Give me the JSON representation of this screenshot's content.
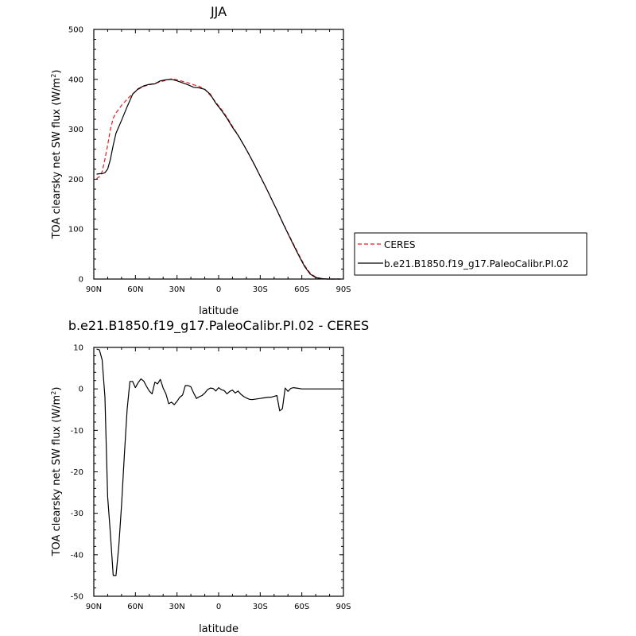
{
  "chart_data": [
    {
      "type": "line",
      "title": "JJA",
      "xlabel": "latitude",
      "ylabel_main": "TOA clearsky net SW flux (W/m",
      "ylabel_sup": "2",
      "ylabel_close": ")",
      "xlim": [
        90,
        -90
      ],
      "ylim": [
        0,
        500
      ],
      "xticks": [
        {
          "value": 90,
          "label": "90N"
        },
        {
          "value": 60,
          "label": "60N"
        },
        {
          "value": 30,
          "label": "30N"
        },
        {
          "value": 0,
          "label": "0"
        },
        {
          "value": -30,
          "label": "30S"
        },
        {
          "value": -60,
          "label": "60S"
        },
        {
          "value": -90,
          "label": "90S"
        }
      ],
      "yticks": [
        0,
        100,
        200,
        300,
        400,
        500
      ],
      "legend_position": "right",
      "series": [
        {
          "name": "CERES",
          "color": "#e41a1c",
          "dash": "dashed",
          "x": [
            88,
            86,
            84,
            82,
            80,
            78,
            76,
            74,
            72,
            70,
            66,
            62,
            58,
            54,
            50,
            46,
            42,
            38,
            34,
            30,
            26,
            22,
            18,
            14,
            10,
            6,
            2,
            -2,
            -6,
            -10,
            -14,
            -18,
            -22,
            -26,
            -30,
            -34,
            -38,
            -42,
            -46,
            -50,
            -54,
            -58,
            -62,
            -66,
            -70,
            -74,
            -78,
            -82,
            -86,
            -88
          ],
          "y": [
            201,
            205,
            215,
            240,
            268,
            300,
            322,
            333,
            340,
            348,
            360,
            371,
            380,
            386,
            389,
            392,
            395,
            398,
            401,
            399,
            396,
            393,
            389,
            386,
            380,
            368,
            354,
            340,
            324,
            306,
            288,
            269,
            249,
            228,
            206,
            184,
            161,
            138,
            115,
            92,
            70,
            48,
            27,
            12,
            4,
            1,
            0,
            0,
            0,
            0
          ]
        },
        {
          "name": "b.e21.B1850.f19_g17.PaleoCalibr.PI.02",
          "color": "#000000",
          "dash": "solid",
          "x": [
            88,
            86,
            84,
            82,
            80,
            78,
            76,
            74,
            72,
            70,
            66,
            62,
            58,
            54,
            50,
            46,
            42,
            38,
            34,
            30,
            26,
            22,
            18,
            14,
            10,
            6,
            2,
            -2,
            -6,
            -10,
            -14,
            -18,
            -22,
            -26,
            -30,
            -34,
            -38,
            -42,
            -46,
            -50,
            -54,
            -58,
            -62,
            -66,
            -70,
            -74,
            -78,
            -82,
            -86,
            -88
          ],
          "y": [
            210,
            211,
            211,
            213,
            220,
            240,
            268,
            292,
            305,
            318,
            345,
            370,
            381,
            387,
            390,
            391,
            397,
            399,
            400,
            397,
            393,
            389,
            384,
            383,
            380,
            370,
            352,
            338,
            322,
            304,
            288,
            269,
            249,
            228,
            206,
            184,
            161,
            138,
            114,
            91,
            68,
            46,
            25,
            10,
            3,
            1,
            0,
            0,
            0,
            0
          ]
        }
      ]
    },
    {
      "type": "line",
      "title": "b.e21.B1850.f19_g17.PaleoCalibr.PI.02 - CERES",
      "xlabel": "latitude",
      "ylabel_main": "TOA clearsky net SW flux (W/m",
      "ylabel_sup": "2",
      "ylabel_close": ")",
      "xlim": [
        90,
        -90
      ],
      "ylim": [
        -50,
        10
      ],
      "xticks": [
        {
          "value": 90,
          "label": "90N"
        },
        {
          "value": 60,
          "label": "60N"
        },
        {
          "value": 30,
          "label": "30N"
        },
        {
          "value": 0,
          "label": "0"
        },
        {
          "value": -30,
          "label": "30S"
        },
        {
          "value": -60,
          "label": "60S"
        },
        {
          "value": -90,
          "label": "90S"
        }
      ],
      "yticks": [
        -50,
        -40,
        -30,
        -20,
        -10,
        0,
        10
      ],
      "series": [
        {
          "name": "",
          "color": "#000000",
          "dash": "solid",
          "x": [
            88,
            86,
            84,
            82,
            80,
            78,
            76,
            74,
            72,
            70,
            68,
            66,
            64,
            62,
            60,
            58,
            56,
            54,
            52,
            50,
            48,
            46,
            44,
            42,
            40,
            38,
            36,
            34,
            32,
            30,
            28,
            26,
            24,
            22,
            20,
            18,
            16,
            14,
            12,
            10,
            8,
            6,
            4,
            2,
            0,
            -2,
            -4,
            -6,
            -8,
            -10,
            -12,
            -14,
            -16,
            -18,
            -20,
            -22,
            -24,
            -26,
            -28,
            -30,
            -32,
            -34,
            -36,
            -38,
            -40,
            -42,
            -44,
            -46,
            -48,
            -50,
            -52,
            -54,
            -56,
            -58,
            -60,
            -62,
            -64,
            -66,
            -68,
            -70,
            -72,
            -74,
            -76,
            -78,
            -80,
            -82,
            -84,
            -86,
            -88
          ],
          "y": [
            9.6,
            9.4,
            7,
            -2,
            -26,
            -35,
            -45,
            -45,
            -38,
            -28,
            -16,
            -5,
            1.8,
            1.8,
            0.3,
            1.5,
            2.4,
            1.9,
            0.6,
            -0.5,
            -1.2,
            1.6,
            1.2,
            2.3,
            0.2,
            -1.2,
            -3.6,
            -3.2,
            -3.8,
            -3.0,
            -2.0,
            -1.5,
            0.8,
            0.8,
            0.5,
            -1.0,
            -2.3,
            -1.9,
            -1.6,
            -1.0,
            -0.2,
            0.2,
            0.1,
            -0.5,
            0.3,
            -0.2,
            -0.4,
            -1.2,
            -0.6,
            -0.3,
            -1.0,
            -0.5,
            -1.3,
            -1.8,
            -2.2,
            -2.5,
            -2.6,
            -2.5,
            -2.4,
            -2.3,
            -2.2,
            -2.1,
            -2.0,
            -2.0,
            -1.8,
            -1.6,
            -5.3,
            -4.8,
            0.2,
            -0.6,
            0.1,
            0.3,
            0.2,
            0.1,
            0.0,
            0.0,
            0.0,
            0.0,
            0.0,
            0.0,
            0.0,
            0.0,
            0.0,
            0.0,
            0.0,
            0.0,
            0.0,
            0.0,
            0.0
          ]
        }
      ]
    }
  ]
}
